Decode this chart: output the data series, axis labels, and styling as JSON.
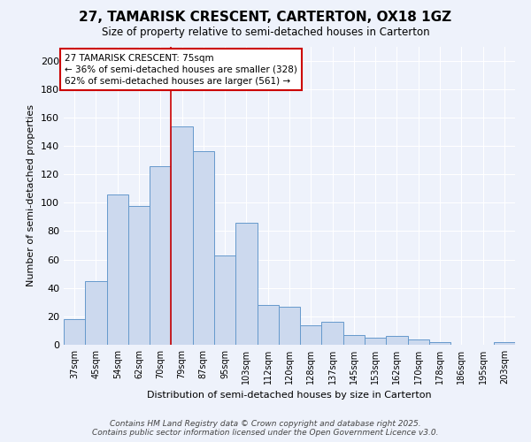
{
  "title_line1": "27, TAMARISK CRESCENT, CARTERTON, OX18 1GZ",
  "title_line2": "Size of property relative to semi-detached houses in Carterton",
  "xlabel": "Distribution of semi-detached houses by size in Carterton",
  "ylabel": "Number of semi-detached properties",
  "categories": [
    "37sqm",
    "45sqm",
    "54sqm",
    "62sqm",
    "70sqm",
    "79sqm",
    "87sqm",
    "95sqm",
    "103sqm",
    "112sqm",
    "120sqm",
    "128sqm",
    "137sqm",
    "145sqm",
    "153sqm",
    "162sqm",
    "170sqm",
    "178sqm",
    "186sqm",
    "195sqm",
    "203sqm"
  ],
  "values": [
    18,
    45,
    106,
    98,
    126,
    154,
    136,
    63,
    86,
    28,
    27,
    14,
    16,
    7,
    5,
    6,
    4,
    2,
    0,
    0,
    2
  ],
  "bar_color": "#ccd9ee",
  "bar_edge_color": "#6699cc",
  "bar_edge_width": 0.7,
  "vline_x": 4.5,
  "vline_color": "#cc0000",
  "annotation_box_text": "27 TAMARISK CRESCENT: 75sqm\n← 36% of semi-detached houses are smaller (328)\n62% of semi-detached houses are larger (561) →",
  "annotation_box_color": "#cc0000",
  "annotation_text_fontsize": 7.5,
  "ylim": [
    0,
    210
  ],
  "yticks": [
    0,
    20,
    40,
    60,
    80,
    100,
    120,
    140,
    160,
    180,
    200
  ],
  "background_color": "#eef2fb",
  "grid_color": "#ffffff",
  "footer_line1": "Contains HM Land Registry data © Crown copyright and database right 2025.",
  "footer_line2": "Contains public sector information licensed under the Open Government Licence v3.0.",
  "footer_fontsize": 6.5
}
